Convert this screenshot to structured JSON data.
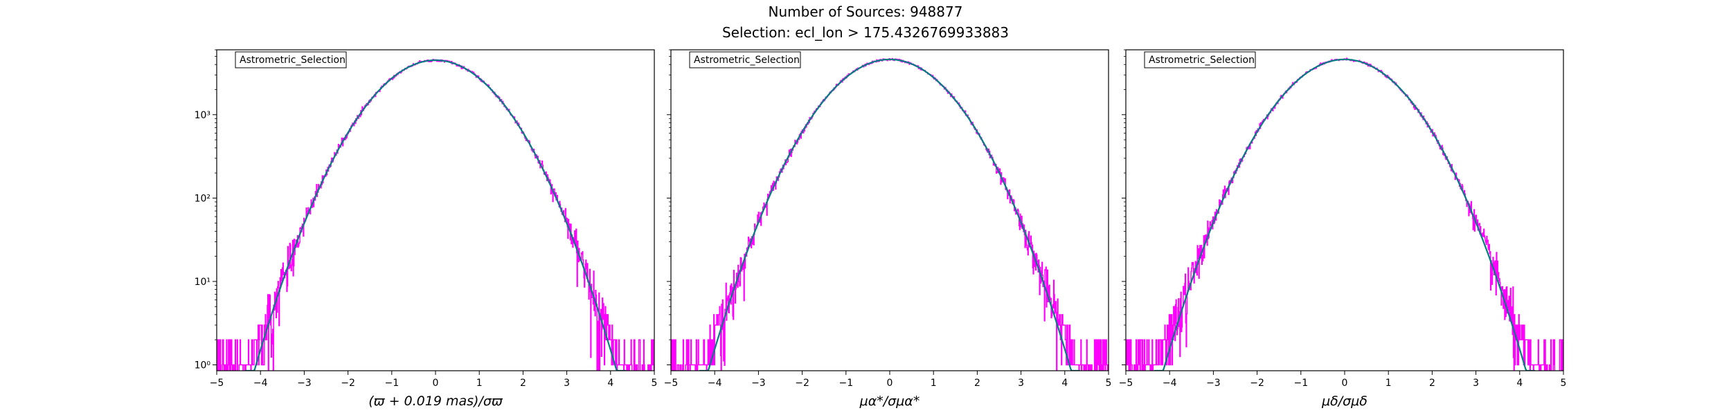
{
  "figure": {
    "title_line1": "Number of Sources: 948877",
    "title_line2": "Selection: ecl_lon > 175.4326769933883"
  },
  "colors": {
    "histogram": "#ff00ff",
    "model": "#008080",
    "axis": "#000000"
  },
  "chart_data": [
    {
      "type": "histogram",
      "legend": "Astrometric_Selection",
      "xlabel": "(ϖ + 0.019 mas)/σϖ",
      "xlim": [
        -5,
        5
      ],
      "xticks": [
        "−5",
        "−4",
        "−3",
        "−2",
        "−1",
        "0",
        "1",
        "2",
        "3",
        "4",
        "5"
      ],
      "y_scale": "log",
      "ylim": [
        0.85,
        6000
      ],
      "yticks": [
        "10⁰",
        "10¹",
        "10²",
        "10³"
      ],
      "model_peak": 4500,
      "model_zero_at": [
        -4.35,
        4.35
      ],
      "hist_tail_start": [
        -5.0,
        5.0
      ],
      "series": [
        {
          "kind": "histogram",
          "x": [
            -5,
            -4.5,
            -4,
            -3.5,
            -3,
            -2.5,
            -2,
            -1.5,
            -1,
            -0.5,
            0,
            0.5,
            1,
            1.5,
            2,
            2.5,
            3,
            3.5,
            4,
            4.5,
            5
          ],
          "values": [
            1.2,
            1.8,
            5,
            22,
            95,
            330,
            1020,
            2100,
            3470,
            4250,
            4500,
            4250,
            3470,
            2100,
            1020,
            330,
            95,
            22,
            5,
            1.8,
            1.2
          ]
        },
        {
          "kind": "model",
          "x": [
            -4.35,
            -4,
            -3,
            -2,
            -1,
            0,
            1,
            2,
            3,
            4,
            4.35
          ],
          "values": [
            1,
            3.6,
            50,
            610,
            2730,
            4500,
            2730,
            610,
            50,
            3.6,
            1
          ]
        }
      ]
    },
    {
      "type": "histogram",
      "legend": "Astrometric_Selection",
      "xlabel": "μα*/σμα*",
      "xlim": [
        -5,
        5
      ],
      "xticks": [
        "−5",
        "−4",
        "−3",
        "−2",
        "−1",
        "0",
        "1",
        "2",
        "3",
        "4",
        "5"
      ],
      "y_scale": "log",
      "ylim": [
        0.85,
        6000
      ],
      "yticks": [
        "10⁰",
        "10¹",
        "10²",
        "10³"
      ],
      "model_peak": 4600,
      "model_zero_at": [
        -4.35,
        4.35
      ],
      "hist_tail_start": [
        -5.0,
        5.0
      ],
      "series": [
        {
          "kind": "histogram",
          "x": [
            -5,
            -4.5,
            -4,
            -3.5,
            -3,
            -2.5,
            -2,
            -1.5,
            -1,
            -0.5,
            0,
            0.5,
            1,
            1.5,
            2,
            2.5,
            3,
            3.5,
            4,
            4.5,
            5
          ],
          "values": [
            1.6,
            3,
            8,
            28,
            105,
            345,
            1030,
            2120,
            3500,
            4330,
            4600,
            4330,
            3500,
            2120,
            1030,
            345,
            105,
            28,
            8,
            3,
            1.6
          ]
        },
        {
          "kind": "model",
          "x": [
            -4.35,
            -4,
            -3,
            -2,
            -1,
            0,
            1,
            2,
            3,
            4,
            4.35
          ],
          "values": [
            1,
            3.6,
            51,
            620,
            2790,
            4600,
            2790,
            620,
            51,
            3.6,
            1
          ]
        }
      ]
    },
    {
      "type": "histogram",
      "legend": "Astrometric_Selection",
      "xlabel": "μδ/σμδ",
      "xlim": [
        -5,
        5
      ],
      "xticks": [
        "−5",
        "−4",
        "−3",
        "−2",
        "−1",
        "0",
        "1",
        "2",
        "3",
        "4",
        "5"
      ],
      "y_scale": "log",
      "ylim": [
        0.85,
        6000
      ],
      "yticks": [
        "10⁰",
        "10¹",
        "10²",
        "10³"
      ],
      "model_peak": 4600,
      "model_zero_at": [
        -4.35,
        4.35
      ],
      "hist_tail_start": [
        -5.0,
        5.0
      ],
      "series": [
        {
          "kind": "histogram",
          "x": [
            -5,
            -4.5,
            -4,
            -3.5,
            -3,
            -2.5,
            -2,
            -1.5,
            -1,
            -0.5,
            0,
            0.5,
            1,
            1.5,
            2,
            2.5,
            3,
            3.5,
            4,
            4.5,
            5
          ],
          "values": [
            2,
            4,
            10,
            30,
            110,
            350,
            1040,
            2130,
            3510,
            4340,
            4600,
            4340,
            3510,
            2130,
            1040,
            350,
            110,
            30,
            10,
            4,
            2
          ]
        },
        {
          "kind": "model",
          "x": [
            -4.35,
            -4,
            -3,
            -2,
            -1,
            0,
            1,
            2,
            3,
            4,
            4.35
          ],
          "values": [
            1,
            3.6,
            51,
            620,
            2790,
            4600,
            2790,
            620,
            51,
            3.6,
            1
          ]
        }
      ]
    }
  ]
}
